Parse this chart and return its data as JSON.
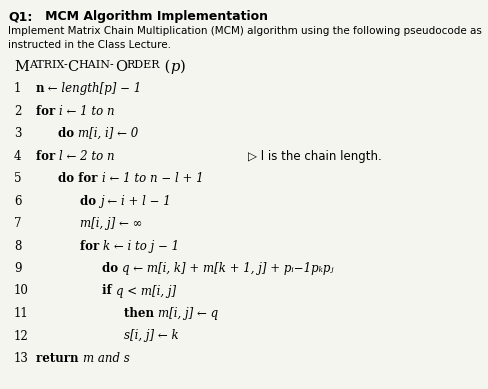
{
  "bg_color": "#f5f5f0",
  "title_q": "Q1:",
  "title_rest": "   MCM Algorithm Implementation",
  "sub1": "Implement Matrix Chain Multiplication (MCM) algorithm using the following pseudocode as",
  "sub2": "instructed in the Class Lecture.",
  "lines": [
    {
      "num": "1",
      "indent": 0,
      "bold": "n",
      "rest": " ← length[p] − 1",
      "comment": ""
    },
    {
      "num": "2",
      "indent": 0,
      "bold": "for ",
      "rest": "i ← 1 to n",
      "comment": ""
    },
    {
      "num": "3",
      "indent": 1,
      "bold": "do ",
      "rest": "m[i, i] ← 0",
      "comment": ""
    },
    {
      "num": "4",
      "indent": 0,
      "bold": "for ",
      "rest": "l ← 2 to n",
      "comment": "▷ l is the chain length."
    },
    {
      "num": "5",
      "indent": 1,
      "bold": "do for ",
      "rest": "i ← 1 to n − l + 1",
      "comment": ""
    },
    {
      "num": "6",
      "indent": 2,
      "bold": "do ",
      "rest": "j ← i + l − 1",
      "comment": ""
    },
    {
      "num": "7",
      "indent": 2,
      "bold": "",
      "rest": "m[i, j] ← ∞",
      "comment": ""
    },
    {
      "num": "8",
      "indent": 2,
      "bold": "for ",
      "rest": "k ← i to j − 1",
      "comment": ""
    },
    {
      "num": "9",
      "indent": 3,
      "bold": "do ",
      "rest": "q ← m[i, k] + m[k + 1, j] + pᵢ−1pₖpⱼ",
      "comment": ""
    },
    {
      "num": "10",
      "indent": 3,
      "bold": "if ",
      "rest": "q < m[i, j]",
      "comment": ""
    },
    {
      "num": "11",
      "indent": 4,
      "bold": "then ",
      "rest": "m[i, j] ← q",
      "comment": ""
    },
    {
      "num": "12",
      "indent": 4,
      "bold": "",
      "rest": "s[i, j] ← k",
      "comment": ""
    },
    {
      "num": "13",
      "indent": 0,
      "bold": "return ",
      "rest": "m and s",
      "comment": ""
    }
  ],
  "sc_big": [
    {
      "char": "M",
      "big": true
    },
    {
      "char": "ATRIX-",
      "big": false
    },
    {
      "char": "C",
      "big": true
    },
    {
      "char": "HAIN-",
      "big": false
    },
    {
      "char": "O",
      "big": true
    },
    {
      "char": "RDER",
      "big": false
    },
    {
      "char": " (",
      "big": true
    },
    {
      "char": "p",
      "big": true,
      "italic": true
    },
    {
      "char": ")",
      "big": true
    }
  ]
}
